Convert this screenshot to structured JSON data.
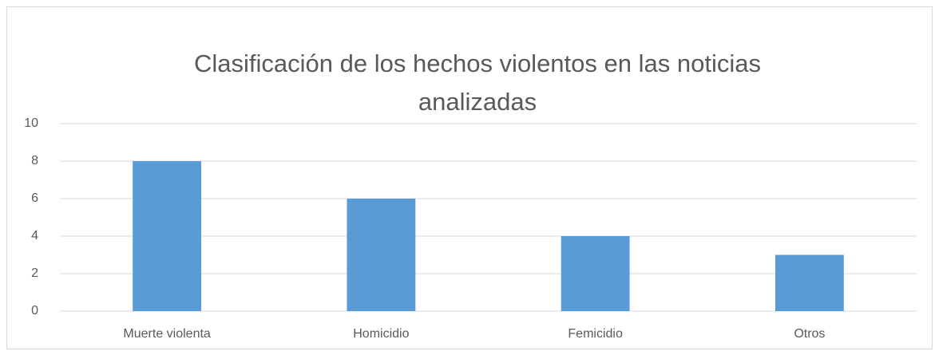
{
  "chart_data": {
    "type": "bar",
    "title": "Clasificación de los hechos violentos en las noticias analizadas",
    "categories": [
      "Muerte violenta",
      "Homicidio",
      "Femicidio",
      "Otros"
    ],
    "values": [
      8,
      6,
      4,
      3
    ],
    "color": "#5b9bd5",
    "ylim": [
      0,
      10
    ],
    "yticks": [
      0,
      2,
      4,
      6,
      8,
      10
    ],
    "grid": true
  }
}
